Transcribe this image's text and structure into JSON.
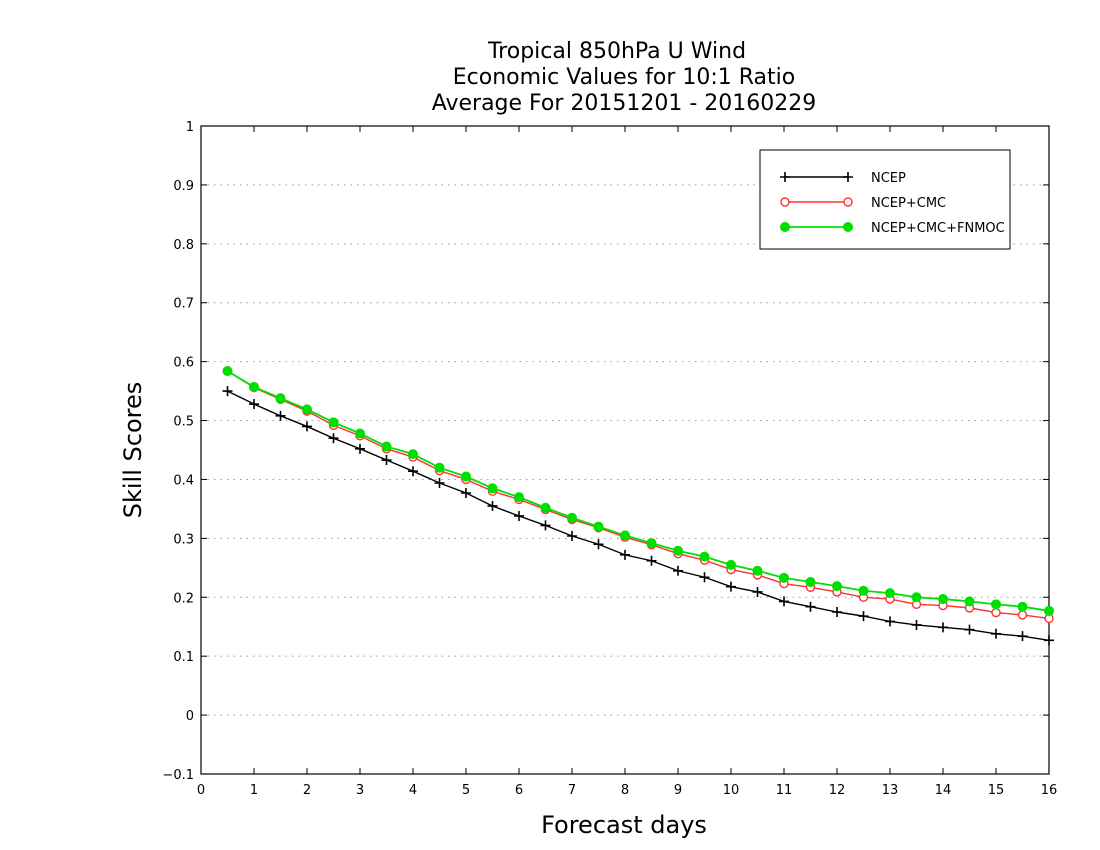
{
  "chart_data": {
    "type": "line",
    "title": [
      "Tropical 850hPa U Wind",
      "Economic Values for 10:1 Ratio",
      "Average For 20151201 - 20160229"
    ],
    "xlabel": "Forecast days",
    "ylabel": "Skill Scores",
    "xlim": [
      0,
      16
    ],
    "ylim": [
      -0.1,
      1
    ],
    "xticks": [
      "0",
      "1",
      "2",
      "3",
      "4",
      "5",
      "6",
      "7",
      "8",
      "9",
      "10",
      "11",
      "12",
      "13",
      "14",
      "15",
      "16"
    ],
    "yticks": [
      "−0.1",
      "0",
      "0.1",
      "0.2",
      "0.3",
      "0.4",
      "0.5",
      "0.6",
      "0.7",
      "0.8",
      "0.9",
      "1"
    ],
    "grid": "horizontal-dotted",
    "legend_position": "top-right",
    "x": [
      0.5,
      1,
      1.5,
      2,
      2.5,
      3,
      3.5,
      4,
      4.5,
      5,
      5.5,
      6,
      6.5,
      7,
      7.5,
      8,
      8.5,
      9,
      9.5,
      10,
      10.5,
      11,
      11.5,
      12,
      12.5,
      13,
      13.5,
      14,
      14.5,
      15,
      15.5,
      16
    ],
    "series": [
      {
        "name": "NCEP",
        "color": "#000000",
        "marker": "plus",
        "values": [
          0.55,
          0.528,
          0.508,
          0.49,
          0.47,
          0.452,
          0.433,
          0.414,
          0.394,
          0.377,
          0.355,
          0.338,
          0.322,
          0.304,
          0.29,
          0.272,
          0.262,
          0.245,
          0.234,
          0.218,
          0.209,
          0.193,
          0.184,
          0.175,
          0.168,
          0.159,
          0.153,
          0.149,
          0.145,
          0.138,
          0.134,
          0.127
        ]
      },
      {
        "name": "NCEP+CMC",
        "color": "#ff3030",
        "marker": "open-circle",
        "values": [
          0.584,
          0.556,
          0.536,
          0.516,
          0.492,
          0.474,
          0.452,
          0.438,
          0.415,
          0.4,
          0.38,
          0.366,
          0.349,
          0.332,
          0.318,
          0.302,
          0.289,
          0.274,
          0.263,
          0.247,
          0.238,
          0.223,
          0.217,
          0.209,
          0.2,
          0.197,
          0.188,
          0.186,
          0.182,
          0.174,
          0.17,
          0.164
        ]
      },
      {
        "name": "NCEP+CMC+FNMOC",
        "color": "#00e000",
        "marker": "filled-circle",
        "values": [
          0.584,
          0.557,
          0.538,
          0.519,
          0.497,
          0.478,
          0.456,
          0.443,
          0.42,
          0.405,
          0.385,
          0.37,
          0.352,
          0.335,
          0.32,
          0.305,
          0.292,
          0.279,
          0.269,
          0.255,
          0.245,
          0.233,
          0.226,
          0.219,
          0.211,
          0.207,
          0.2,
          0.197,
          0.193,
          0.188,
          0.184,
          0.177
        ]
      }
    ]
  }
}
